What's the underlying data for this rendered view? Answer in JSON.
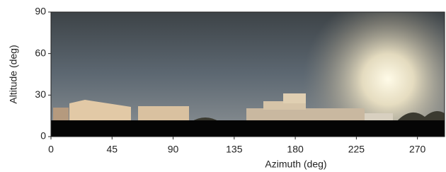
{
  "chart_data": {
    "type": "image",
    "xlabel": "Azimuth (deg)",
    "ylabel": "Altitude (deg)",
    "xlim": [
      0,
      290
    ],
    "ylim": [
      0,
      90
    ],
    "xticks": [
      0,
      45,
      90,
      135,
      180,
      225,
      270
    ],
    "yticks": [
      0,
      30,
      60,
      90
    ]
  }
}
